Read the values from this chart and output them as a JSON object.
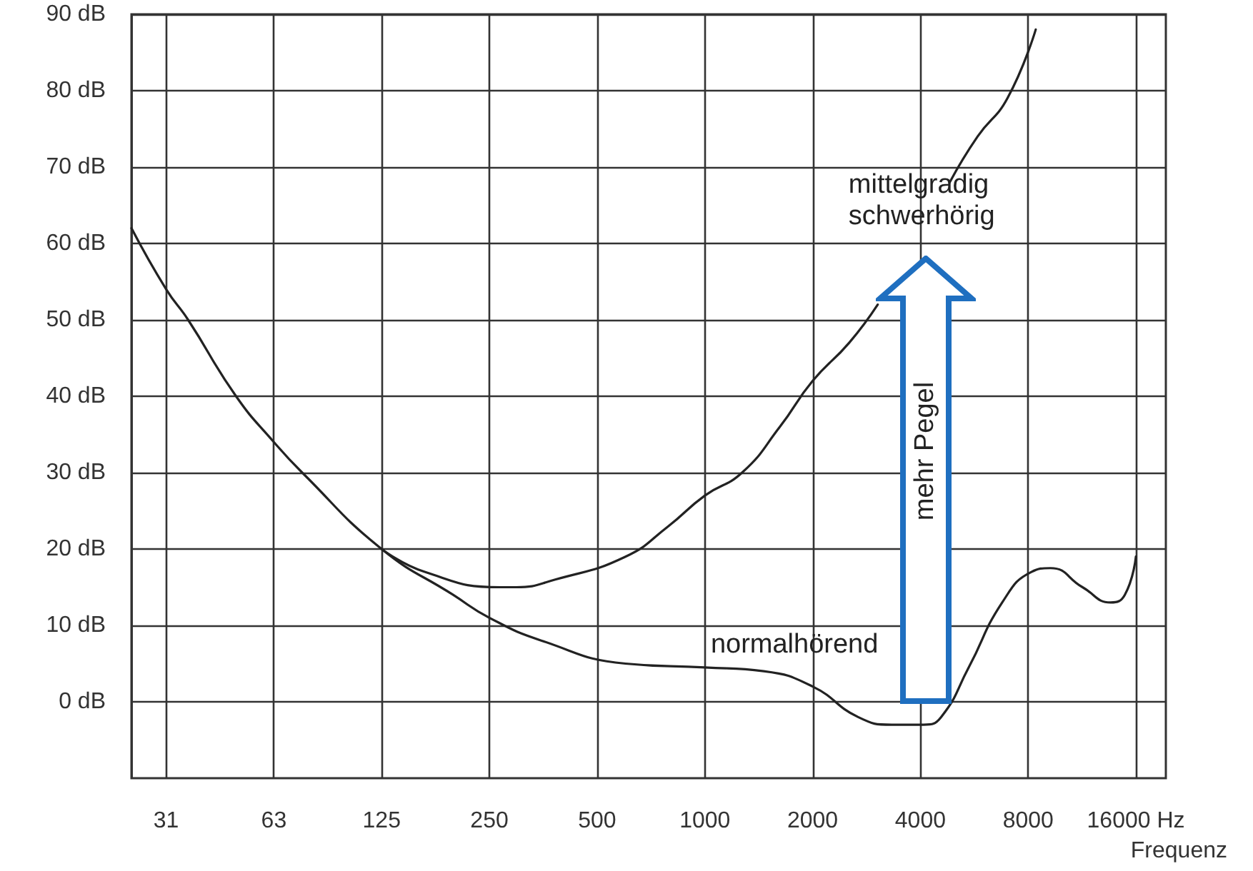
{
  "chart_data": {
    "type": "line",
    "xlabel": "Frequenz",
    "log": "x",
    "grid": true,
    "marker": "none",
    "line_style": "solid",
    "xlim": [
      25,
      19400
    ],
    "xticks": [
      {
        "value": 31.25,
        "label": "31"
      },
      {
        "value": 62.5,
        "label": "63"
      },
      125,
      250,
      500,
      1000,
      2000,
      4000,
      8000,
      {
        "value": 16000,
        "label": "16000 Hz"
      }
    ],
    "ylim": [
      -10,
      90
    ],
    "yticks": [
      {
        "value": 0,
        "label": "0 dB"
      },
      {
        "value": 10,
        "label": "10 dB"
      },
      {
        "value": 20,
        "label": "20 dB"
      },
      {
        "value": 30,
        "label": "30 dB"
      },
      {
        "value": 40,
        "label": "40 dB"
      },
      {
        "value": 50,
        "label": "50 dB"
      },
      {
        "value": 60,
        "label": "60 dB"
      },
      {
        "value": 70,
        "label": "70 dB"
      },
      {
        "value": 80,
        "label": "80 dB"
      },
      {
        "value": 90,
        "label": "90 dB"
      }
    ],
    "series": [
      {
        "color": "#222222",
        "x": [
          25,
          31.25,
          36,
          49,
          62.5,
          75,
          125,
          198,
          250,
          350,
          600,
          1000,
          1460,
          2000,
          2680,
          3330,
          4080,
          4570,
          5460,
          6770,
          8170,
          9240,
          11350,
          13600,
          14900,
          16000
        ],
        "values": [
          62,
          54,
          50,
          40,
          34,
          30,
          20,
          14,
          11,
          8,
          5,
          4.5,
          4,
          2,
          -2,
          -3,
          -3,
          -2,
          4.5,
          13,
          17,
          17.5,
          15,
          13,
          14,
          19
        ]
      },
      {
        "color": "#222222",
        "x": [
          125,
          165,
          268,
          297,
          382,
          600,
          791,
          1000,
          1270,
          1620,
          2000,
          2530,
          3040,
          3600,
          4830,
          5780,
          7000,
          8400
        ],
        "values": [
          20,
          17,
          15,
          15,
          16,
          19,
          23,
          27,
          30,
          36,
          42,
          47,
          52,
          null,
          68,
          74,
          79,
          88
        ]
      }
    ],
    "annotations": [
      "mittelgradig\nschwerhörig",
      "normalhörend",
      "mehr Pegel"
    ]
  }
}
